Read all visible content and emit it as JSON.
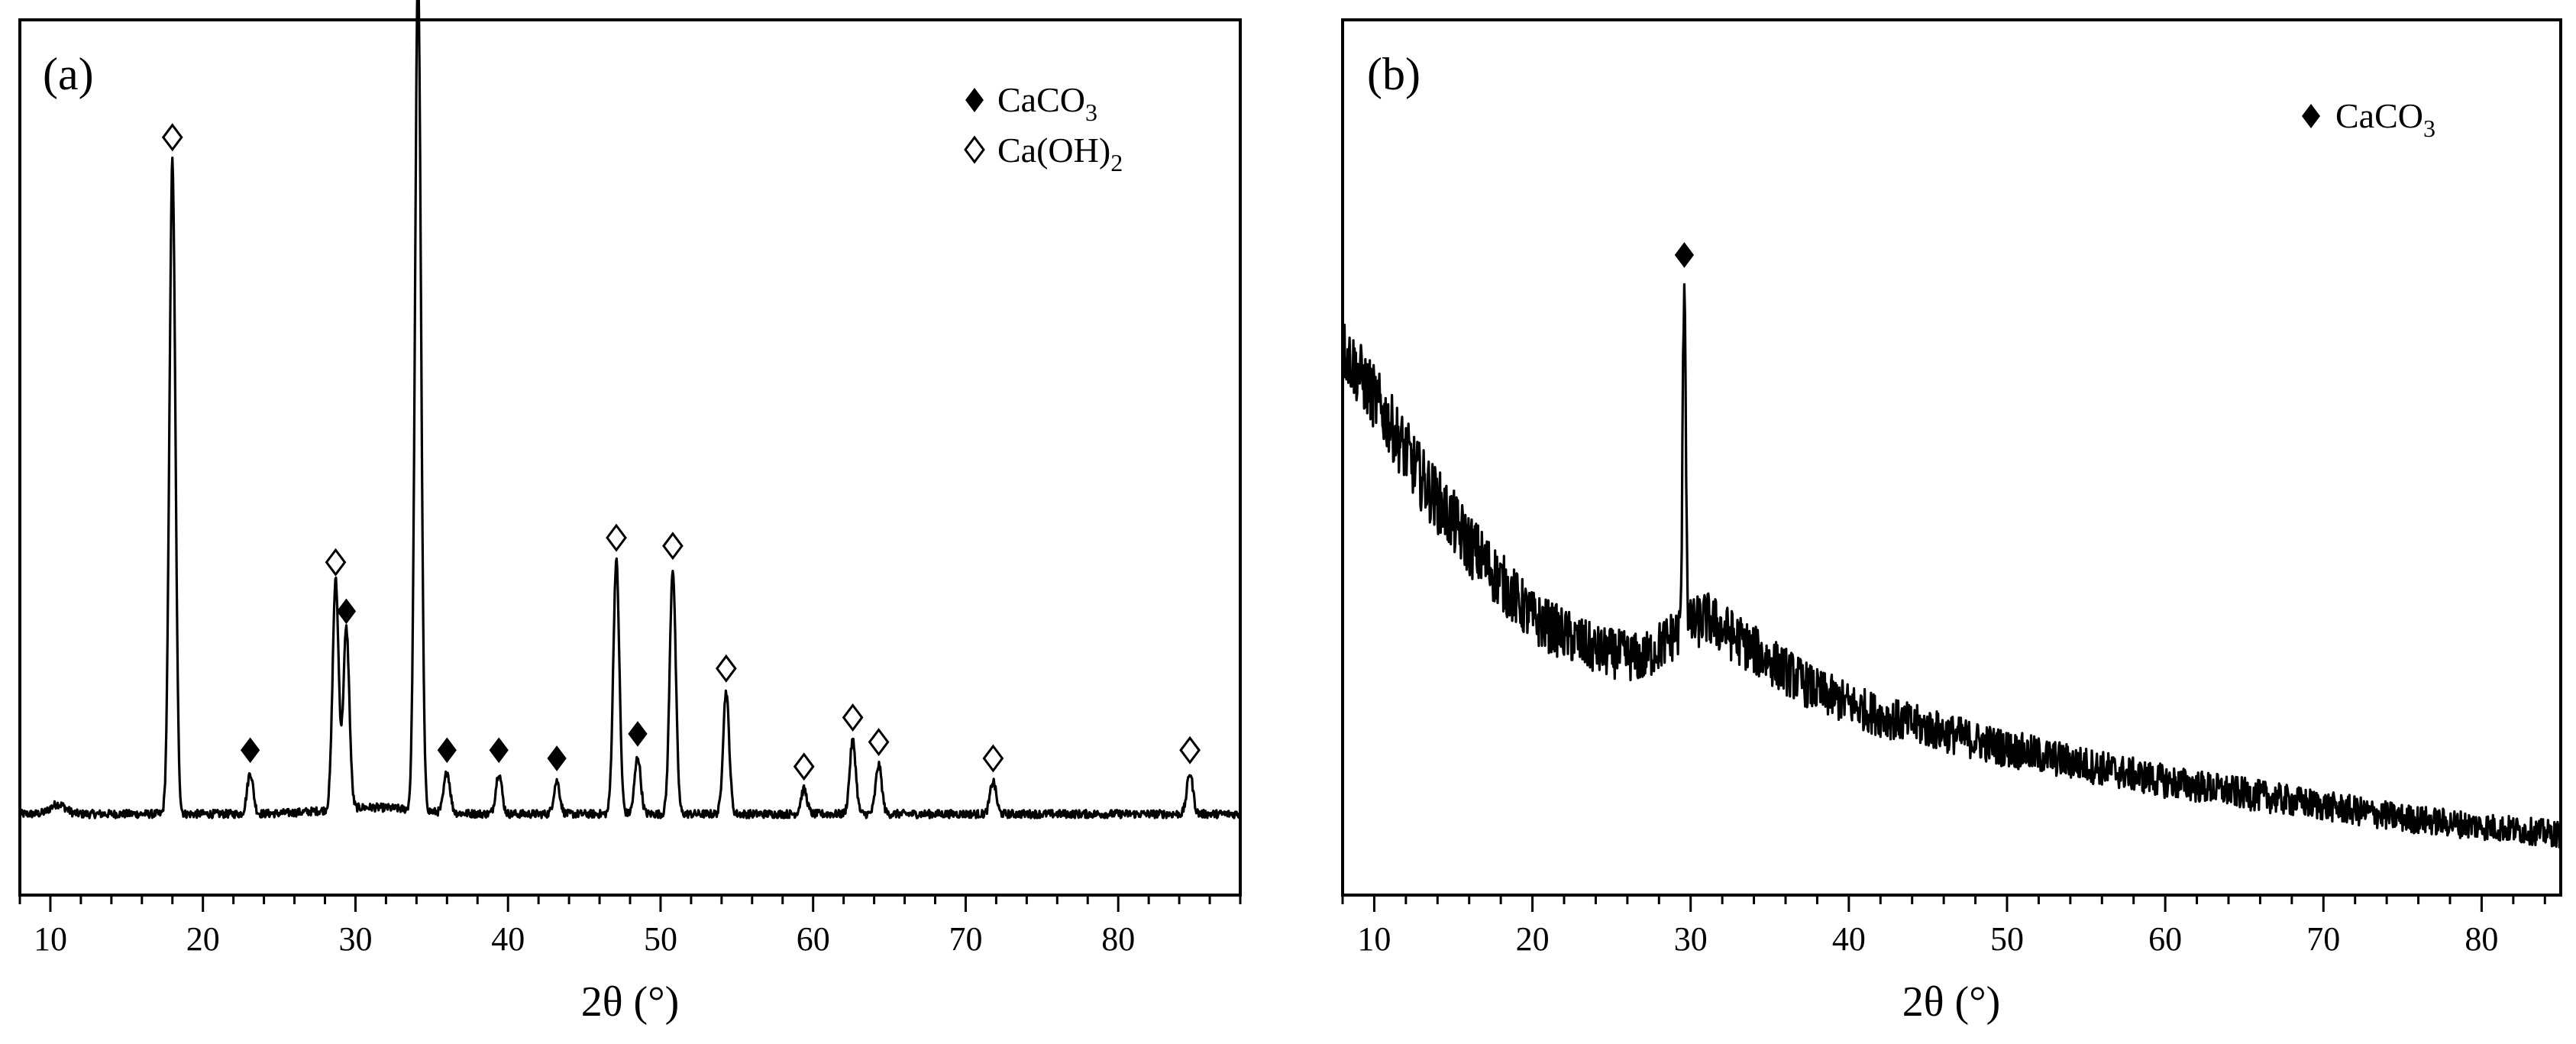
{
  "chart_data": [
    {
      "panel_label": "(a)",
      "type": "line",
      "xlabel": "2θ (°)",
      "ylabel": "",
      "xlim": [
        8,
        88
      ],
      "xticks": [
        10,
        20,
        30,
        40,
        50,
        60,
        70,
        80
      ],
      "x_minor_step": 2,
      "y_ticks_shown": false,
      "grid": false,
      "legend_position": "top-right",
      "legend": [
        {
          "marker": "filled-diamond",
          "label": "CaCO",
          "subscript": "3"
        },
        {
          "marker": "open-diamond",
          "label": "Ca(OH)",
          "subscript": "2"
        }
      ],
      "ylim": [
        0,
        100
      ],
      "baseline": 6,
      "noise": 0.5,
      "peaks": [
        {
          "x": 18.0,
          "height": 80,
          "phase": "Ca(OH)2"
        },
        {
          "x": 23.1,
          "height": 5,
          "phase": "CaCO3"
        },
        {
          "x": 28.7,
          "height": 28,
          "phase": "Ca(OH)2"
        },
        {
          "x": 29.4,
          "height": 22,
          "phase": "CaCO3"
        },
        {
          "x": 34.1,
          "height": 103,
          "phase": "Ca(OH)2"
        },
        {
          "x": 36.0,
          "height": 5,
          "phase": "CaCO3"
        },
        {
          "x": 39.4,
          "height": 5,
          "phase": "CaCO3"
        },
        {
          "x": 43.2,
          "height": 4,
          "phase": "CaCO3"
        },
        {
          "x": 47.1,
          "height": 31,
          "phase": "Ca(OH)2"
        },
        {
          "x": 48.5,
          "height": 7,
          "phase": "CaCO3"
        },
        {
          "x": 50.8,
          "height": 30,
          "phase": "Ca(OH)2"
        },
        {
          "x": 54.3,
          "height": 15,
          "phase": "Ca(OH)2"
        },
        {
          "x": 59.4,
          "height": 3,
          "phase": "Ca(OH)2"
        },
        {
          "x": 62.6,
          "height": 9,
          "phase": "Ca(OH)2"
        },
        {
          "x": 64.3,
          "height": 6,
          "phase": "Ca(OH)2"
        },
        {
          "x": 71.8,
          "height": 4,
          "phase": "Ca(OH)2"
        },
        {
          "x": 84.7,
          "height": 5,
          "phase": "Ca(OH)2"
        }
      ]
    },
    {
      "panel_label": "(b)",
      "type": "line",
      "xlabel": "2θ (°)",
      "ylabel": "",
      "xlim": [
        8,
        85
      ],
      "xticks": [
        10,
        20,
        30,
        40,
        50,
        60,
        70,
        80
      ],
      "x_minor_step": 2,
      "y_ticks_shown": false,
      "grid": false,
      "legend_position": "top-right",
      "legend": [
        {
          "marker": "filled-diamond",
          "label": "CaCO",
          "subscript": "3"
        }
      ],
      "ylim": [
        0,
        100
      ],
      "background": [
        {
          "x": 8,
          "y": 63
        },
        {
          "x": 10,
          "y": 57
        },
        {
          "x": 13,
          "y": 47
        },
        {
          "x": 16,
          "y": 39
        },
        {
          "x": 20,
          "y": 30
        },
        {
          "x": 24,
          "y": 26
        },
        {
          "x": 27,
          "y": 25
        },
        {
          "x": 29,
          "y": 28
        },
        {
          "x": 31,
          "y": 30
        },
        {
          "x": 34,
          "y": 26
        },
        {
          "x": 38,
          "y": 21
        },
        {
          "x": 42,
          "y": 18
        },
        {
          "x": 46,
          "y": 16
        },
        {
          "x": 50,
          "y": 14
        },
        {
          "x": 55,
          "y": 12
        },
        {
          "x": 60,
          "y": 10
        },
        {
          "x": 65,
          "y": 8.5
        },
        {
          "x": 70,
          "y": 7
        },
        {
          "x": 75,
          "y": 5.5
        },
        {
          "x": 80,
          "y": 4.5
        },
        {
          "x": 85,
          "y": 3.5
        }
      ],
      "noise": 4,
      "peaks": [
        {
          "x": 29.6,
          "height": 43,
          "phase": "CaCO3"
        }
      ]
    }
  ]
}
